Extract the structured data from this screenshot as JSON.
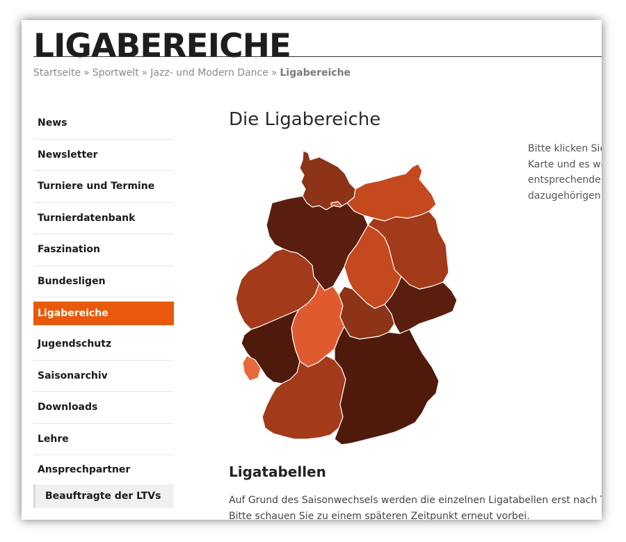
{
  "header": {
    "site_title": "LIGABEREICHE"
  },
  "breadcrumb": {
    "items": [
      "Startseite",
      "Sportwelt",
      "Jazz- und Modern Dance",
      "Ligabereiche"
    ],
    "separator": "»"
  },
  "sidebar": {
    "items": [
      {
        "label": "News"
      },
      {
        "label": "Newsletter"
      },
      {
        "label": "Turniere und Termine"
      },
      {
        "label": "Turnierdatenbank"
      },
      {
        "label": "Faszination"
      },
      {
        "label": "Bundesligen"
      },
      {
        "label": "Ligabereiche",
        "active": true
      },
      {
        "label": "Jugendschutz"
      },
      {
        "label": "Saisonarchiv"
      },
      {
        "label": "Downloads"
      },
      {
        "label": "Lehre"
      },
      {
        "label": "Ansprechpartner"
      }
    ],
    "subitem": {
      "label": "Beauftragte der LTVs"
    },
    "accent_color": "#e8590c"
  },
  "main": {
    "heading": "Die Ligabereiche",
    "intro_lines": [
      "Bitte klicken Sie",
      "Karte und es we",
      "entsprechende l",
      "dazugehörigen l"
    ],
    "section_heading": "Ligatabellen",
    "paragraph_lines": [
      "Auf Grund des Saisonwechsels werden die einzelnen Ligatabellen erst nach Turn",
      "Bitte schauen Sie zu einem späteren Zeitpunkt erneut vorbei."
    ]
  },
  "map": {
    "region_colors": {
      "dark": "#5a1e0e",
      "darker": "#4f1a0c",
      "mid": "#8c3318",
      "red": "#a33a1a",
      "orange": "#c4491f",
      "light": "#e05a30",
      "lighter": "#e8683d"
    }
  }
}
